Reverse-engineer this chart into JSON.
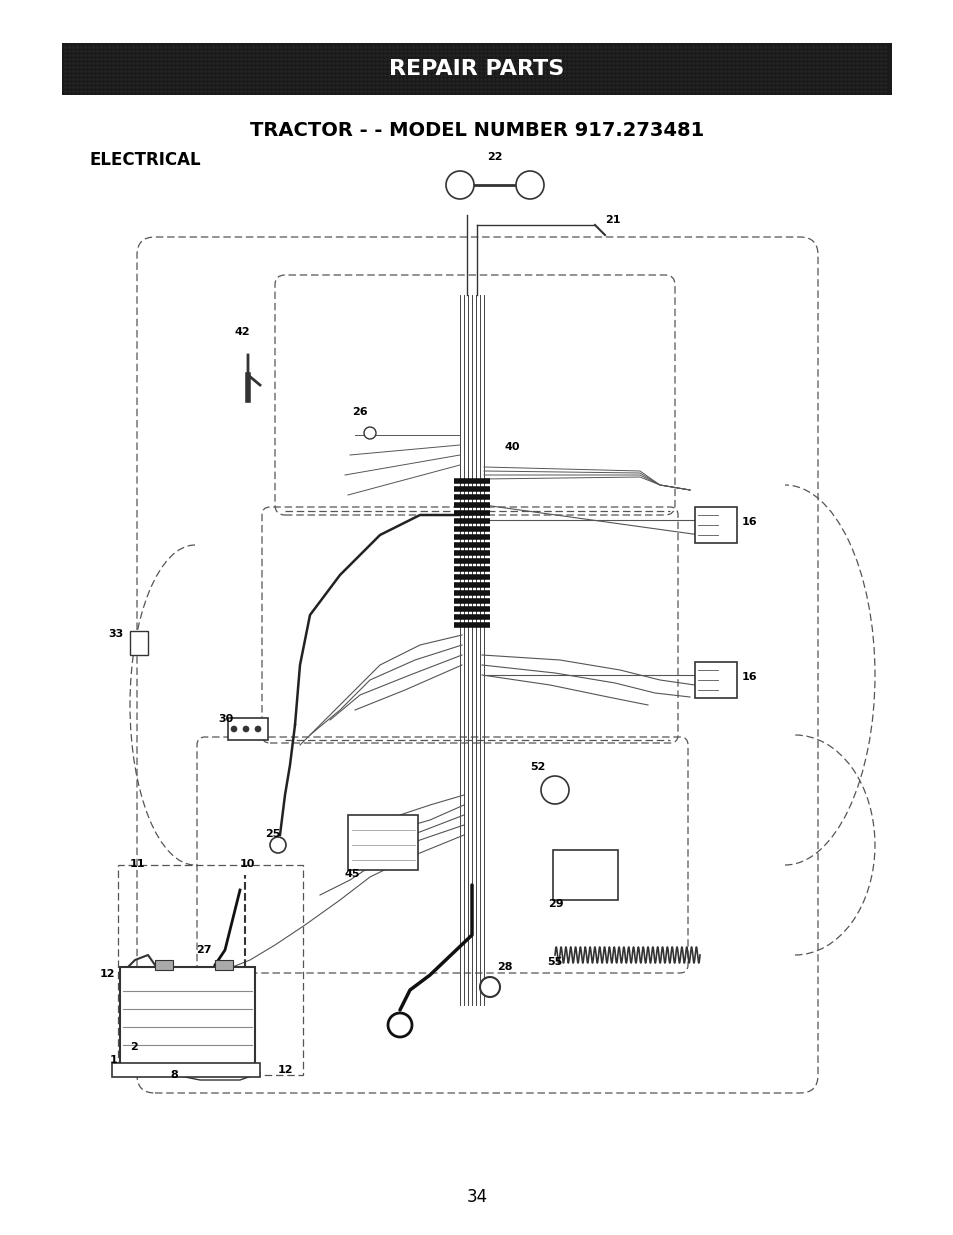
{
  "header_text": "REPAIR PARTS",
  "header_bg_color": "#1a1a1a",
  "header_text_color": "#ffffff",
  "title_text": "TRACTOR - - MODEL NUMBER 917.273481",
  "section_label": "ELECTRICAL",
  "page_number": "34",
  "background_color": "#ffffff"
}
